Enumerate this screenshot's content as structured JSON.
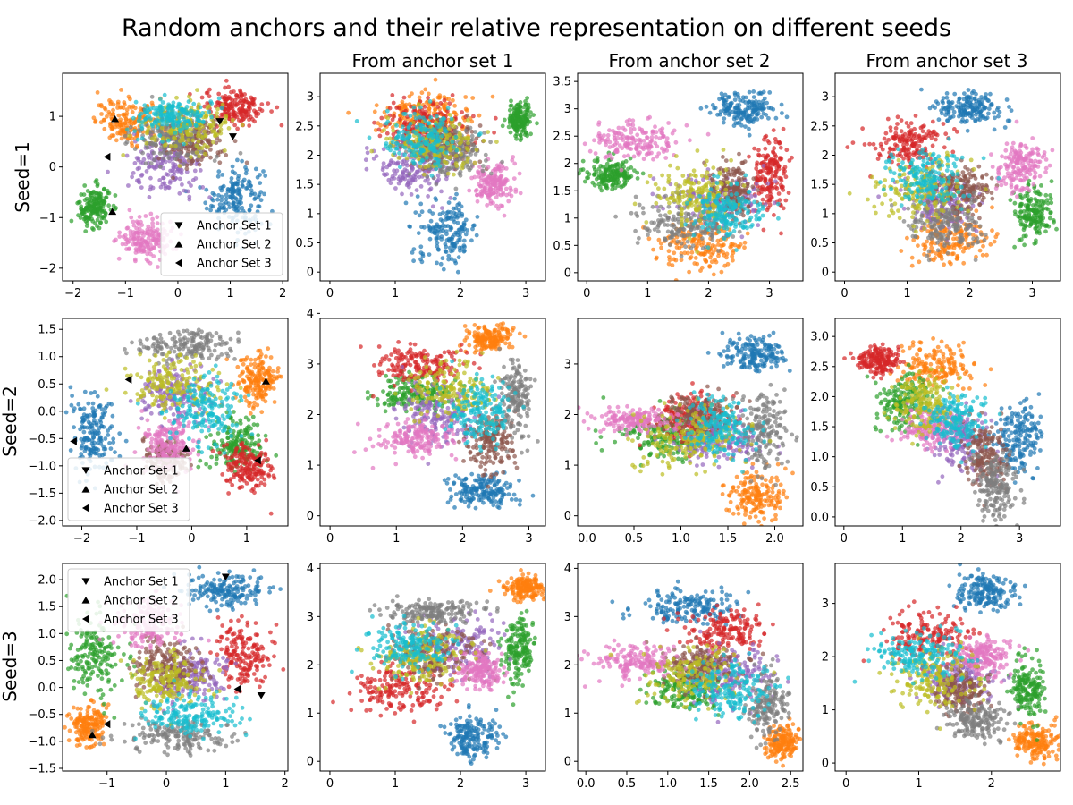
{
  "figure": {
    "title": "Random anchors and their relative representation on different seeds",
    "column_titles": [
      "",
      "From anchor set 1",
      "From anchor set 2",
      "From anchor set 3"
    ],
    "row_labels": [
      "Seed=1",
      "Seed=2",
      "Seed=3"
    ],
    "palette": [
      "#1f77b4",
      "#ff7f0e",
      "#2ca02c",
      "#d62728",
      "#9467bd",
      "#8c564b",
      "#e377c2",
      "#7f7f7f",
      "#bcbd22",
      "#17becf"
    ]
  },
  "chart_data": [
    {
      "type": "scatter",
      "row": 0,
      "col": 0,
      "xlim": [
        -2.2,
        2.1
      ],
      "ylim": [
        -2.25,
        1.85
      ],
      "xticks": [
        -2,
        -1,
        0,
        1,
        2
      ],
      "yticks": [
        -2,
        -1,
        0,
        1
      ],
      "legend": {
        "position": "lower right",
        "entries": [
          "Anchor Set 1",
          "Anchor Set 2",
          "Anchor Set 3"
        ],
        "markers": [
          "v",
          "^",
          "<"
        ]
      },
      "clusters": [
        [
          0,
          1.1,
          -0.6,
          0.45,
          0.55
        ],
        [
          1,
          -0.9,
          0.9,
          0.55,
          0.35
        ],
        [
          2,
          -1.6,
          -0.8,
          0.25,
          0.35
        ],
        [
          3,
          1.1,
          1.2,
          0.5,
          0.3
        ],
        [
          4,
          -0.2,
          0.0,
          0.6,
          0.5
        ],
        [
          5,
          0.3,
          0.5,
          0.5,
          0.4
        ],
        [
          6,
          -0.6,
          -1.4,
          0.45,
          0.35
        ],
        [
          7,
          -0.1,
          0.6,
          0.6,
          0.4
        ],
        [
          8,
          0.2,
          0.8,
          0.7,
          0.4
        ],
        [
          9,
          -0.1,
          1.0,
          0.6,
          0.3
        ]
      ],
      "anchors": [
        [
          [
            0.8,
            0.9
          ],
          [
            1.05,
            0.6
          ]
        ],
        [
          [
            -1.2,
            0.95
          ],
          [
            -1.25,
            -0.88
          ]
        ],
        [
          [
            -1.35,
            0.2
          ]
        ]
      ]
    },
    {
      "type": "scatter",
      "row": 0,
      "col": 1,
      "xlim": [
        -0.15,
        3.3
      ],
      "ylim": [
        -0.15,
        3.4
      ],
      "xticks": [
        0,
        1,
        2,
        3
      ],
      "yticks": [
        0,
        0.5,
        1,
        1.5,
        2,
        2.5,
        3
      ],
      "clusters": [
        [
          0,
          1.8,
          0.7,
          0.4,
          0.45
        ],
        [
          1,
          1.4,
          2.7,
          0.6,
          0.3
        ],
        [
          2,
          2.9,
          2.6,
          0.15,
          0.25
        ],
        [
          3,
          1.4,
          2.5,
          0.5,
          0.35
        ],
        [
          4,
          1.3,
          1.8,
          0.5,
          0.4
        ],
        [
          5,
          1.8,
          2.2,
          0.4,
          0.3
        ],
        [
          6,
          2.5,
          1.5,
          0.25,
          0.3
        ],
        [
          7,
          1.8,
          2.0,
          0.5,
          0.4
        ],
        [
          8,
          1.6,
          2.2,
          0.6,
          0.4
        ],
        [
          9,
          1.4,
          2.3,
          0.5,
          0.4
        ]
      ]
    },
    {
      "type": "scatter",
      "row": 0,
      "col": 2,
      "xlim": [
        -0.15,
        3.55
      ],
      "ylim": [
        -0.15,
        3.65
      ],
      "xticks": [
        0,
        1,
        2,
        3
      ],
      "yticks": [
        0,
        0.5,
        1,
        1.5,
        2,
        2.5,
        3,
        3.5
      ],
      "clusters": [
        [
          0,
          2.6,
          3.0,
          0.45,
          0.25
        ],
        [
          1,
          1.9,
          0.5,
          0.6,
          0.4
        ],
        [
          2,
          0.4,
          1.8,
          0.3,
          0.2
        ],
        [
          3,
          3.0,
          1.8,
          0.25,
          0.6
        ],
        [
          4,
          2.1,
          1.3,
          0.6,
          0.4
        ],
        [
          5,
          2.4,
          1.5,
          0.3,
          0.4
        ],
        [
          6,
          0.8,
          2.4,
          0.6,
          0.3
        ],
        [
          7,
          1.6,
          0.9,
          0.6,
          0.4
        ],
        [
          8,
          1.8,
          1.4,
          0.6,
          0.5
        ],
        [
          9,
          2.3,
          1.1,
          0.5,
          0.4
        ]
      ]
    },
    {
      "type": "scatter",
      "row": 0,
      "col": 3,
      "xlim": [
        -0.15,
        3.45
      ],
      "ylim": [
        -0.15,
        3.4
      ],
      "xticks": [
        0,
        1,
        2,
        3
      ],
      "yticks": [
        0,
        0.5,
        1,
        1.5,
        2,
        2.5,
        3
      ],
      "clusters": [
        [
          0,
          2.0,
          2.8,
          0.45,
          0.25
        ],
        [
          1,
          1.7,
          0.6,
          0.6,
          0.4
        ],
        [
          2,
          3.0,
          1.0,
          0.25,
          0.4
        ],
        [
          3,
          1.0,
          2.2,
          0.5,
          0.3
        ],
        [
          4,
          1.5,
          1.2,
          0.5,
          0.4
        ],
        [
          5,
          1.9,
          1.4,
          0.4,
          0.4
        ],
        [
          6,
          2.8,
          1.8,
          0.35,
          0.35
        ],
        [
          7,
          1.6,
          0.8,
          0.5,
          0.4
        ],
        [
          8,
          1.2,
          1.4,
          0.6,
          0.5
        ],
        [
          9,
          1.3,
          1.6,
          0.5,
          0.4
        ]
      ]
    },
    {
      "type": "scatter",
      "row": 1,
      "col": 0,
      "xlim": [
        -2.35,
        1.75
      ],
      "ylim": [
        -2.1,
        1.7
      ],
      "xticks": [
        -2,
        -1,
        0,
        1
      ],
      "yticks": [
        -2.0,
        -1.5,
        -1.0,
        -0.5,
        0.0,
        0.5,
        1.0,
        1.5
      ],
      "ytick_labels": [
        "−2.0",
        "−1.5",
        "−1.0",
        "−0.5",
        "0.0",
        "0.5",
        "1.0",
        "1.5"
      ],
      "legend": {
        "position": "lower left",
        "entries": [
          "Anchor Set 1",
          "Anchor Set 2",
          "Anchor Set 3"
        ],
        "markers": [
          "v",
          "^",
          "<"
        ]
      },
      "clusters": [
        [
          0,
          -1.8,
          -0.4,
          0.3,
          0.6
        ],
        [
          1,
          1.2,
          0.6,
          0.3,
          0.4
        ],
        [
          2,
          0.8,
          -0.6,
          0.4,
          0.4
        ],
        [
          3,
          1.0,
          -1.0,
          0.4,
          0.35
        ],
        [
          4,
          -0.3,
          0.3,
          0.6,
          0.4
        ],
        [
          5,
          -0.5,
          -0.9,
          0.3,
          0.3
        ],
        [
          6,
          -0.4,
          -0.6,
          0.4,
          0.4
        ],
        [
          7,
          -0.1,
          1.2,
          0.7,
          0.25
        ],
        [
          8,
          -0.3,
          0.5,
          0.7,
          0.45
        ],
        [
          9,
          0.2,
          0.0,
          0.6,
          0.5
        ]
      ],
      "anchors": [
        [],
        [
          [
            1.35,
            0.55
          ],
          [
            -0.1,
            -0.68
          ]
        ],
        [
          [
            -1.15,
            0.58
          ],
          [
            1.2,
            -0.9
          ],
          [
            -2.15,
            -0.55
          ]
        ]
      ]
    },
    {
      "type": "scatter",
      "row": 1,
      "col": 1,
      "xlim": [
        -0.15,
        3.25
      ],
      "ylim": [
        -0.2,
        3.9
      ],
      "xticks": [
        0,
        1,
        2,
        3
      ],
      "yticks": [
        0,
        1,
        2,
        3,
        4
      ],
      "clusters": [
        [
          0,
          2.3,
          0.5,
          0.4,
          0.3
        ],
        [
          1,
          2.4,
          3.5,
          0.3,
          0.2
        ],
        [
          2,
          1.3,
          2.4,
          0.5,
          0.3
        ],
        [
          3,
          1.3,
          3.0,
          0.6,
          0.3
        ],
        [
          4,
          1.6,
          2.0,
          0.5,
          0.5
        ],
        [
          5,
          2.4,
          1.5,
          0.3,
          0.5
        ],
        [
          6,
          1.3,
          1.5,
          0.5,
          0.3
        ],
        [
          7,
          2.8,
          2.3,
          0.2,
          0.6
        ],
        [
          8,
          1.8,
          2.5,
          0.6,
          0.5
        ],
        [
          9,
          2.3,
          2.1,
          0.4,
          0.5
        ]
      ]
    },
    {
      "type": "scatter",
      "row": 1,
      "col": 2,
      "xlim": [
        -0.1,
        2.3
      ],
      "ylim": [
        -0.2,
        3.9
      ],
      "xticks": [
        0,
        0.5,
        1,
        1.5,
        2
      ],
      "xtick_labels": [
        "0.0",
        "0.5",
        "1.0",
        "1.5",
        "2.0"
      ],
      "yticks": [
        0,
        1,
        2,
        3
      ],
      "clusters": [
        [
          0,
          1.8,
          3.2,
          0.3,
          0.3
        ],
        [
          1,
          1.8,
          0.4,
          0.25,
          0.4
        ],
        [
          2,
          0.8,
          1.6,
          0.4,
          0.4
        ],
        [
          3,
          1.1,
          1.9,
          0.3,
          0.4
        ],
        [
          4,
          1.4,
          1.5,
          0.4,
          0.4
        ],
        [
          5,
          1.2,
          2.0,
          0.3,
          0.3
        ],
        [
          6,
          0.5,
          1.9,
          0.4,
          0.2
        ],
        [
          7,
          1.9,
          1.7,
          0.2,
          0.7
        ],
        [
          8,
          1.1,
          1.5,
          0.5,
          0.5
        ],
        [
          9,
          1.4,
          1.8,
          0.3,
          0.5
        ]
      ]
    },
    {
      "type": "scatter",
      "row": 1,
      "col": 3,
      "xlim": [
        -0.15,
        3.7
      ],
      "ylim": [
        -0.15,
        3.3
      ],
      "xticks": [
        0,
        1,
        2,
        3
      ],
      "yticks": [
        0,
        0.5,
        1,
        1.5,
        2,
        2.5,
        3
      ],
      "yticklabels": [
        "0.0",
        "0.5",
        "1.0",
        "1.5",
        "2.0",
        "2.5",
        "3.0"
      ],
      "clusters": [
        [
          0,
          3.0,
          1.3,
          0.35,
          0.5
        ],
        [
          1,
          1.6,
          2.5,
          0.5,
          0.3
        ],
        [
          2,
          1.0,
          1.9,
          0.4,
          0.4
        ],
        [
          3,
          0.6,
          2.6,
          0.3,
          0.2
        ],
        [
          4,
          2.0,
          1.3,
          0.4,
          0.4
        ],
        [
          5,
          2.4,
          1.0,
          0.3,
          0.4
        ],
        [
          6,
          1.5,
          1.5,
          0.4,
          0.3
        ],
        [
          7,
          2.6,
          0.5,
          0.3,
          0.4
        ],
        [
          8,
          1.4,
          1.9,
          0.4,
          0.4
        ],
        [
          9,
          1.9,
          1.6,
          0.4,
          0.4
        ]
      ]
    },
    {
      "type": "scatter",
      "row": 2,
      "col": 0,
      "xlim": [
        -1.75,
        2.05
      ],
      "ylim": [
        -1.55,
        2.3
      ],
      "xticks": [
        -1,
        0,
        1,
        2
      ],
      "yticks": [
        -1.5,
        -1.0,
        -0.5,
        0.0,
        0.5,
        1.0,
        1.5,
        2.0
      ],
      "ytick_labels": [
        "−1.5",
        "−1.0",
        "−0.5",
        "0.0",
        "0.5",
        "1.0",
        "1.5",
        "2.0"
      ],
      "legend": {
        "position": "upper left",
        "entries": [
          "Anchor Set 1",
          "Anchor Set 2",
          "Anchor Set 3"
        ],
        "markers": [
          "v",
          "^",
          "<"
        ]
      },
      "clusters": [
        [
          0,
          1.0,
          1.8,
          0.6,
          0.25
        ],
        [
          1,
          -1.3,
          -0.7,
          0.25,
          0.3
        ],
        [
          2,
          -1.2,
          0.6,
          0.4,
          0.6
        ],
        [
          3,
          1.3,
          0.6,
          0.4,
          0.5
        ],
        [
          4,
          0.4,
          0.2,
          0.5,
          0.4
        ],
        [
          5,
          0.0,
          0.4,
          0.5,
          0.4
        ],
        [
          6,
          -0.3,
          1.2,
          0.5,
          0.4
        ],
        [
          7,
          0.2,
          -0.9,
          0.8,
          0.25
        ],
        [
          8,
          0.0,
          0.1,
          0.5,
          0.4
        ],
        [
          9,
          0.4,
          -0.5,
          0.7,
          0.3
        ]
      ],
      "anchors": [
        [
          [
            1.0,
            2.05
          ],
          [
            1.6,
            -0.15
          ]
        ],
        [
          [
            -1.25,
            -0.88
          ]
        ],
        [
          [
            1.2,
            -0.03
          ],
          [
            -1.0,
            -0.68
          ]
        ]
      ]
    },
    {
      "type": "scatter",
      "row": 2,
      "col": 1,
      "xlim": [
        -0.15,
        3.3
      ],
      "ylim": [
        -0.2,
        4.1
      ],
      "xticks": [
        0,
        1,
        2,
        3
      ],
      "yticks": [
        0,
        1,
        2,
        3,
        4
      ],
      "clusters": [
        [
          0,
          2.2,
          0.5,
          0.3,
          0.35
        ],
        [
          1,
          3.0,
          3.6,
          0.25,
          0.2
        ],
        [
          2,
          2.9,
          2.3,
          0.2,
          0.6
        ],
        [
          3,
          1.0,
          1.5,
          0.6,
          0.4
        ],
        [
          4,
          2.0,
          2.4,
          0.6,
          0.5
        ],
        [
          5,
          1.6,
          2.2,
          0.5,
          0.5
        ],
        [
          6,
          2.3,
          1.9,
          0.3,
          0.3
        ],
        [
          7,
          1.6,
          3.1,
          0.6,
          0.2
        ],
        [
          8,
          1.4,
          2.2,
          0.6,
          0.5
        ],
        [
          9,
          1.2,
          2.4,
          0.5,
          0.4
        ]
      ]
    },
    {
      "type": "scatter",
      "row": 2,
      "col": 2,
      "xlim": [
        -0.1,
        2.65
      ],
      "ylim": [
        -0.2,
        4.1
      ],
      "xticks": [
        0,
        0.5,
        1,
        1.5,
        2,
        2.5
      ],
      "xtick_labels": [
        "0.0",
        "0.5",
        "1.0",
        "1.5",
        "2.0",
        "2.5"
      ],
      "yticks": [
        0,
        1,
        2,
        3,
        4
      ],
      "clusters": [
        [
          0,
          1.2,
          3.2,
          0.5,
          0.3
        ],
        [
          1,
          2.4,
          0.4,
          0.15,
          0.3
        ],
        [
          2,
          1.2,
          1.5,
          0.4,
          0.4
        ],
        [
          3,
          1.7,
          2.7,
          0.4,
          0.4
        ],
        [
          4,
          1.8,
          1.8,
          0.4,
          0.5
        ],
        [
          5,
          1.4,
          2.0,
          0.4,
          0.4
        ],
        [
          6,
          0.6,
          2.1,
          0.4,
          0.3
        ],
        [
          7,
          2.2,
          1.2,
          0.2,
          0.6
        ],
        [
          8,
          1.3,
          1.8,
          0.5,
          0.5
        ],
        [
          9,
          1.8,
          1.5,
          0.4,
          0.5
        ]
      ]
    },
    {
      "type": "scatter",
      "row": 2,
      "col": 3,
      "xlim": [
        -0.15,
        2.95
      ],
      "ylim": [
        -0.15,
        3.75
      ],
      "xticks": [
        0,
        1,
        2
      ],
      "yticks": [
        0,
        1,
        2,
        3
      ],
      "clusters": [
        [
          0,
          1.9,
          3.2,
          0.35,
          0.3
        ],
        [
          1,
          2.6,
          0.4,
          0.25,
          0.3
        ],
        [
          2,
          2.5,
          1.4,
          0.2,
          0.5
        ],
        [
          3,
          1.1,
          2.4,
          0.5,
          0.4
        ],
        [
          4,
          1.5,
          1.6,
          0.4,
          0.4
        ],
        [
          5,
          1.6,
          1.4,
          0.3,
          0.4
        ],
        [
          6,
          1.9,
          2.0,
          0.3,
          0.3
        ],
        [
          7,
          1.8,
          0.8,
          0.4,
          0.3
        ],
        [
          8,
          1.2,
          1.6,
          0.5,
          0.5
        ],
        [
          9,
          1.0,
          2.0,
          0.5,
          0.4
        ]
      ]
    }
  ]
}
